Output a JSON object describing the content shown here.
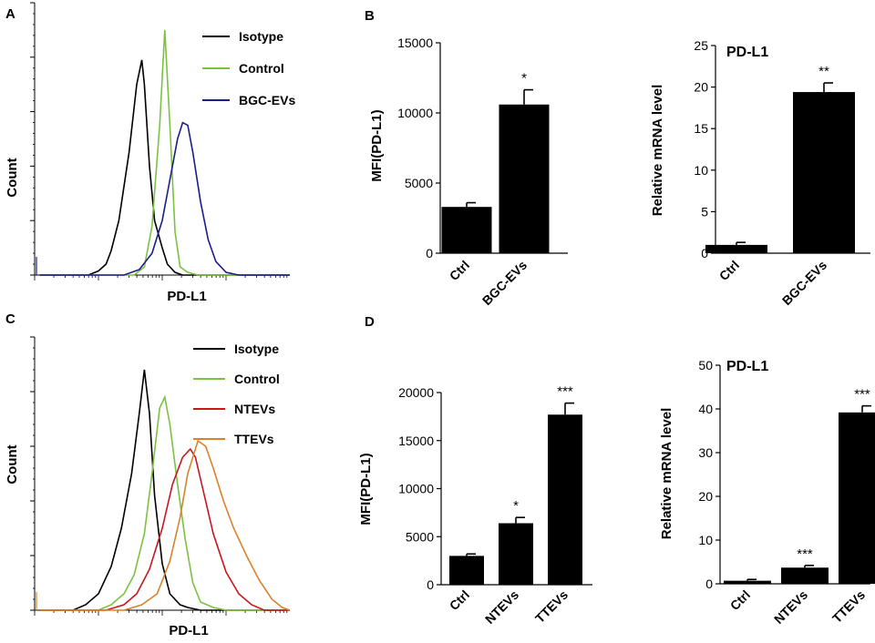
{
  "panel_letters": [
    "A",
    "B",
    "C",
    "D"
  ],
  "chart_data": [
    {
      "id": "A",
      "type": "line",
      "title": "",
      "xlabel": "PD-L1",
      "ylabel": "Count",
      "legend": [
        "Isotype",
        "Control",
        "BGC-EVs"
      ],
      "legend_position": "top-right",
      "colors": {
        "Isotype": "#000000",
        "Control": "#7cc242",
        "BGC-EVs": "#1c1c8c"
      },
      "x_scale": "log",
      "xlim": [
        0,
        10
      ],
      "ylim": [
        0,
        1.0
      ],
      "series": [
        {
          "name": "Isotype",
          "x": [
            0.2,
            2.1,
            2.5,
            2.8,
            3.0,
            3.3,
            3.7,
            4.0,
            4.2,
            4.3,
            4.5,
            4.7,
            5.0,
            5.2,
            5.5,
            5.8,
            6.3,
            6.8,
            10
          ],
          "values": [
            0,
            0,
            0.015,
            0.04,
            0.09,
            0.2,
            0.45,
            0.7,
            0.79,
            0.7,
            0.4,
            0.2,
            0.1,
            0.04,
            0.01,
            0,
            0,
            0,
            0
          ]
        },
        {
          "name": "Control",
          "x": [
            0.2,
            3.9,
            4.3,
            4.6,
            4.9,
            5.1,
            5.3,
            5.5,
            5.7,
            6.0,
            6.4,
            7.0,
            10
          ],
          "values": [
            0,
            0,
            0.03,
            0.18,
            0.55,
            0.9,
            0.55,
            0.16,
            0.03,
            0.01,
            0,
            0,
            0
          ]
        },
        {
          "name": "BGC-EVs",
          "x": [
            0.2,
            3.5,
            4.1,
            4.6,
            5.0,
            5.3,
            5.6,
            5.8,
            6.0,
            6.2,
            6.5,
            6.8,
            7.1,
            7.5,
            8.0,
            10
          ],
          "values": [
            0,
            0,
            0.02,
            0.08,
            0.2,
            0.35,
            0.5,
            0.56,
            0.55,
            0.45,
            0.27,
            0.13,
            0.05,
            0.01,
            0,
            0
          ]
        }
      ]
    },
    {
      "id": "B-left",
      "type": "bar",
      "title": "",
      "xlabel": "",
      "ylabel": "MFI(PD-L1)",
      "categories": [
        "Ctrl",
        "BGC-EVs"
      ],
      "values": [
        3300,
        10600
      ],
      "errors": [
        300,
        1050
      ],
      "significance": [
        "",
        "*"
      ],
      "ylim": [
        0,
        15000
      ],
      "yticks": [
        0,
        5000,
        10000,
        15000
      ]
    },
    {
      "id": "B-right",
      "type": "bar",
      "title": "PD-L1",
      "xlabel": "",
      "ylabel": "Relative mRNA level",
      "categories": [
        "Ctrl",
        "BGC-EVs"
      ],
      "values": [
        1.0,
        19.4
      ],
      "errors": [
        0.3,
        1.1
      ],
      "significance": [
        "",
        "**"
      ],
      "ylim": [
        0,
        25
      ],
      "yticks": [
        0,
        5,
        10,
        15,
        20,
        25
      ]
    },
    {
      "id": "C",
      "type": "line",
      "title": "",
      "xlabel": "PD-L1",
      "ylabel": "Count",
      "legend": [
        "Isotype",
        "Control",
        "NTEVs",
        "TTEVs"
      ],
      "legend_position": "top-right",
      "colors": {
        "Isotype": "#000000",
        "Control": "#7cc242",
        "NTEVs": "#c8161d",
        "TTEVs": "#d9822b"
      },
      "x_scale": "log",
      "xlim": [
        0,
        10
      ],
      "ylim": [
        0,
        1.0
      ],
      "series": [
        {
          "name": "Isotype",
          "x": [
            0.2,
            1.5,
            2.0,
            2.5,
            3.0,
            3.4,
            3.8,
            4.1,
            4.3,
            4.5,
            4.7,
            5.0,
            5.3,
            5.7,
            6.0,
            6.5,
            10
          ],
          "values": [
            0,
            0,
            0.02,
            0.06,
            0.16,
            0.3,
            0.5,
            0.72,
            0.88,
            0.72,
            0.42,
            0.17,
            0.06,
            0.02,
            0.01,
            0,
            0
          ]
        },
        {
          "name": "Control",
          "x": [
            0.2,
            2.5,
            3.0,
            3.5,
            3.9,
            4.3,
            4.6,
            4.9,
            5.1,
            5.3,
            5.6,
            5.9,
            6.2,
            6.5,
            7.0,
            7.5,
            10
          ],
          "values": [
            0,
            0,
            0.02,
            0.06,
            0.13,
            0.28,
            0.5,
            0.74,
            0.78,
            0.68,
            0.46,
            0.26,
            0.1,
            0.03,
            0.01,
            0,
            0
          ]
        },
        {
          "name": "NTEVs",
          "x": [
            0.2,
            2.8,
            3.5,
            4.0,
            4.5,
            5.0,
            5.4,
            5.8,
            6.1,
            6.3,
            6.6,
            7.0,
            7.5,
            8.0,
            8.5,
            9.0,
            10
          ],
          "values": [
            0,
            0,
            0.02,
            0.06,
            0.15,
            0.3,
            0.46,
            0.56,
            0.59,
            0.56,
            0.44,
            0.28,
            0.14,
            0.06,
            0.02,
            0,
            0
          ]
        },
        {
          "name": "TTEVs",
          "x": [
            0.2,
            3.5,
            4.2,
            4.8,
            5.3,
            5.7,
            6.0,
            6.4,
            6.7,
            7.0,
            7.4,
            7.8,
            8.3,
            8.8,
            9.3,
            9.7,
            10
          ],
          "values": [
            0,
            0,
            0.02,
            0.06,
            0.18,
            0.34,
            0.5,
            0.62,
            0.6,
            0.52,
            0.4,
            0.3,
            0.2,
            0.11,
            0.04,
            0.01,
            0
          ]
        }
      ]
    },
    {
      "id": "D-left",
      "type": "bar",
      "title": "",
      "xlabel": "",
      "ylabel": "MFI(PD-L1)",
      "categories": [
        "Ctrl",
        "NTEVs",
        "TTEVs"
      ],
      "values": [
        3000,
        6400,
        17700
      ],
      "errors": [
        200,
        600,
        1200
      ],
      "significance": [
        "",
        "*",
        "***"
      ],
      "ylim": [
        0,
        20000
      ],
      "yticks": [
        0,
        5000,
        10000,
        15000,
        20000
      ]
    },
    {
      "id": "D-right",
      "type": "bar",
      "title": "PD-L1",
      "xlabel": "",
      "ylabel": "Relative mRNA level",
      "categories": [
        "Ctrl",
        "NTEVs",
        "TTEVs"
      ],
      "values": [
        0.7,
        3.7,
        39.2
      ],
      "errors": [
        0.3,
        0.5,
        1.5
      ],
      "significance": [
        "",
        "***",
        "***"
      ],
      "ylim": [
        0,
        50
      ],
      "yticks": [
        0,
        10,
        20,
        30,
        40,
        50
      ]
    }
  ]
}
